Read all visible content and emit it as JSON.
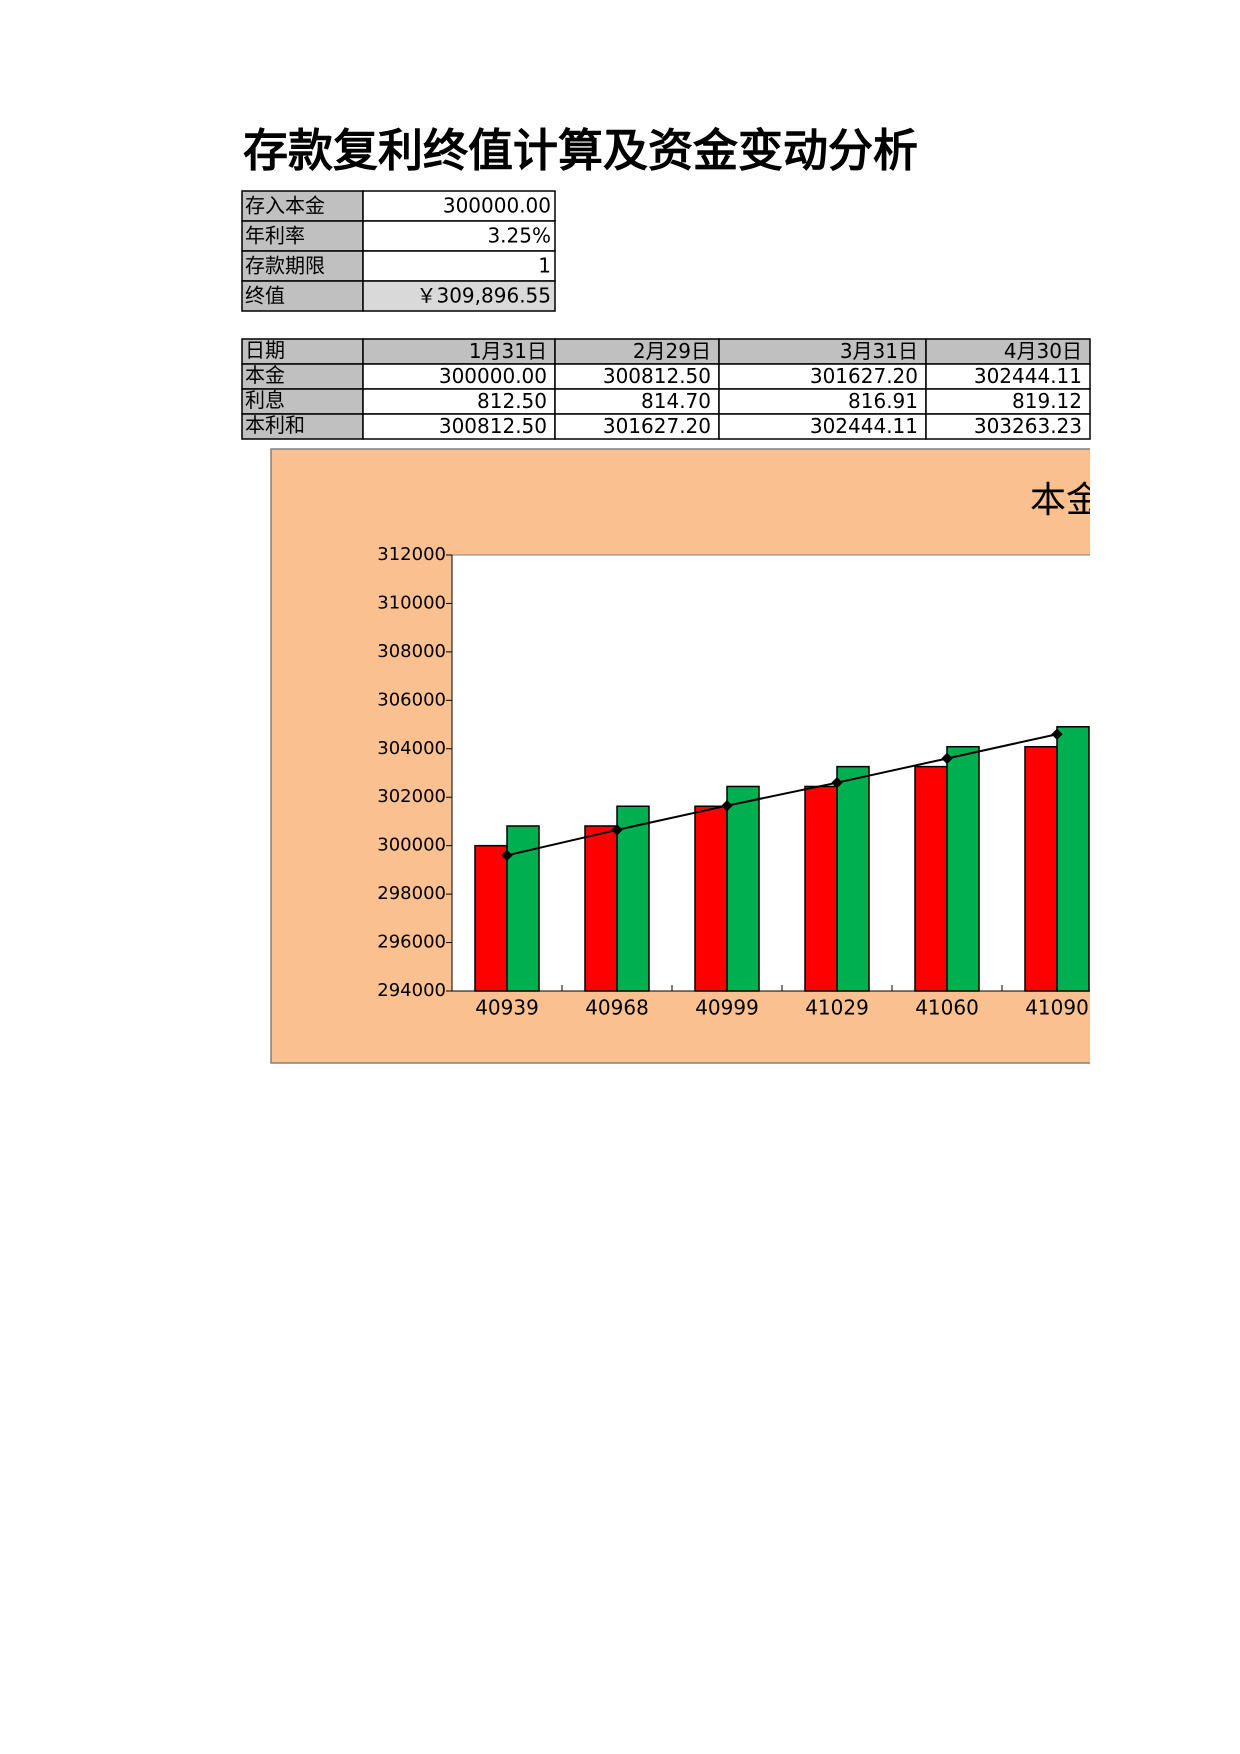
{
  "title": "存款复利终值计算及资金变动分析",
  "summary": {
    "rows": [
      [
        "存入本金",
        "300000.00"
      ],
      [
        "年利率",
        "3.25%"
      ],
      [
        "存款期限",
        "1"
      ],
      [
        "终值",
        "￥309,896.55"
      ]
    ]
  },
  "schedule": {
    "header": [
      "日期",
      "1月31日",
      "2月29日",
      "3月31日",
      "4月30日"
    ],
    "rows": [
      [
        "本金",
        "300000.00",
        "300812.50",
        "301627.20",
        "302444.11"
      ],
      [
        "利息",
        "812.50",
        "814.70",
        "816.91",
        "819.12"
      ],
      [
        "本利和",
        "300812.50",
        "301627.20",
        "302444.11",
        "303263.23"
      ]
    ]
  },
  "chart_data": {
    "type": "bar",
    "title": "本金",
    "categories": [
      "40939",
      "40968",
      "40999",
      "41029",
      "41060",
      "41090"
    ],
    "series": [
      {
        "color": "#ff0000",
        "values": [
          300000,
          300812.5,
          301627.2,
          302444.11,
          303263.23,
          304085
        ]
      },
      {
        "color": "#00b050",
        "values": [
          300812.5,
          301627.2,
          302444.11,
          303263.23,
          304085,
          304908
        ]
      },
      {
        "type": "line",
        "color": "#000000",
        "values": [
          299600,
          300650,
          301650,
          302600,
          303600,
          304600
        ]
      }
    ],
    "ylim": [
      294000,
      312000
    ],
    "yticks": [
      294000,
      296000,
      298000,
      300000,
      302000,
      304000,
      306000,
      308000,
      310000,
      312000
    ],
    "grid": false
  }
}
